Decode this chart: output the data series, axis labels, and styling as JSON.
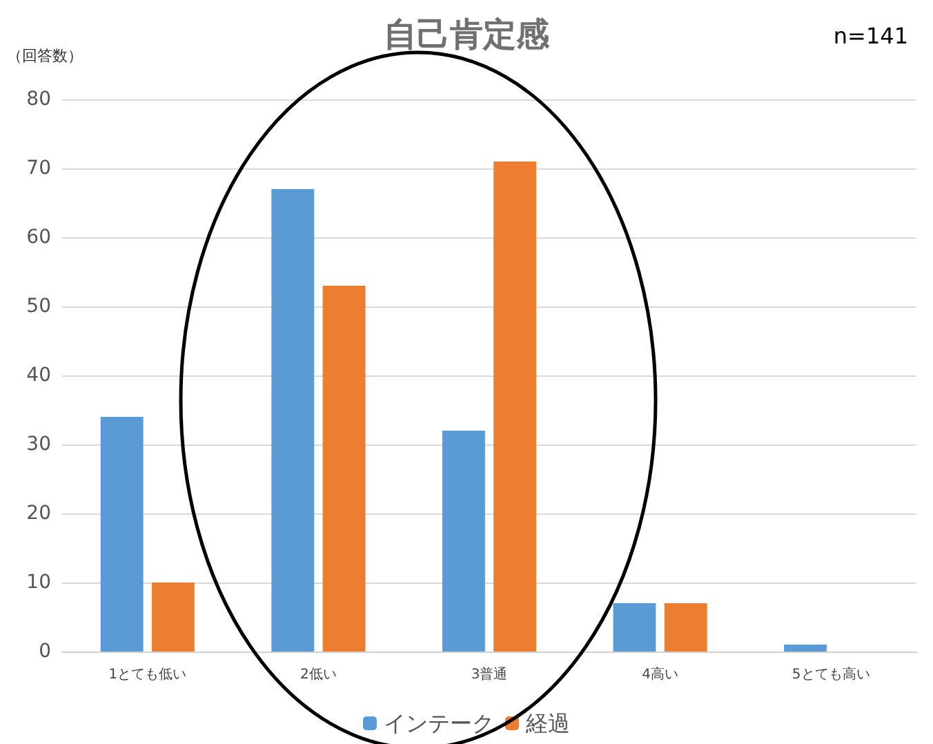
{
  "chart_data": {
    "type": "bar",
    "title": "自己肯定感",
    "ylabel": "（回答数）",
    "annotations": [
      "n=141"
    ],
    "categories": [
      "1とても低い",
      "2低い",
      "3普通",
      "4高い",
      "5とても高い"
    ],
    "series": [
      {
        "name": "インテーク",
        "color": "#5b9bd5",
        "values": [
          34,
          67,
          32,
          7,
          1
        ]
      },
      {
        "name": "経過",
        "color": "#ed7d31",
        "values": [
          10,
          53,
          71,
          7,
          0
        ]
      }
    ],
    "ylim": [
      0,
      80
    ],
    "yticks": [
      0,
      10,
      20,
      30,
      40,
      50,
      60,
      70,
      80
    ],
    "grid": "y",
    "legend": "bottom"
  }
}
